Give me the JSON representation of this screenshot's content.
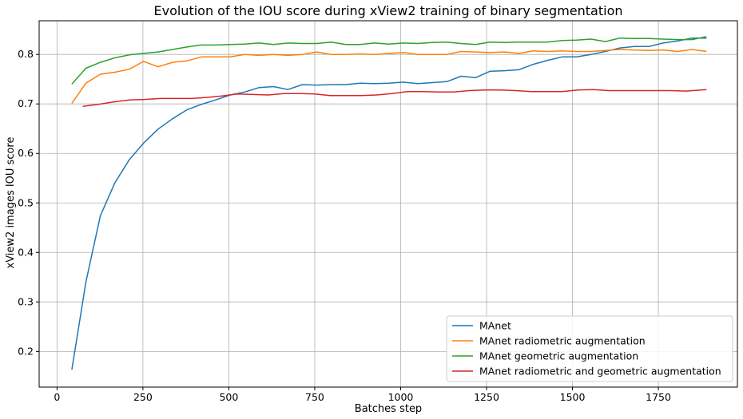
{
  "chart_data": {
    "type": "line",
    "title": "Evolution of the IOU score during xView2 training of binary segmentation",
    "xlabel": "Batches step",
    "ylabel": "xView2 images IOU score",
    "xlim": [
      -52,
      1980
    ],
    "ylim": [
      0.128,
      0.868
    ],
    "x_ticks": [
      0,
      250,
      500,
      750,
      1000,
      1250,
      1500,
      1750
    ],
    "y_ticks": [
      0.2,
      0.3,
      0.4,
      0.5,
      0.6,
      0.7,
      0.8
    ],
    "grid": true,
    "legend_position": "lower-right",
    "series": [
      {
        "name": "MAnet",
        "color": "#1f77b4",
        "x": [
          43,
          84,
          126,
          168,
          210,
          252,
          294,
          336,
          378,
          420,
          462,
          504,
          546,
          588,
          630,
          672,
          714,
          756,
          798,
          840,
          882,
          924,
          966,
          1008,
          1050,
          1092,
          1134,
          1176,
          1218,
          1260,
          1302,
          1344,
          1386,
          1428,
          1470,
          1512,
          1554,
          1596,
          1638,
          1680,
          1722,
          1764,
          1806,
          1848,
          1890
        ],
        "y": [
          0.163,
          0.34,
          0.474,
          0.54,
          0.587,
          0.621,
          0.649,
          0.67,
          0.688,
          0.699,
          0.708,
          0.718,
          0.724,
          0.733,
          0.735,
          0.729,
          0.739,
          0.738,
          0.739,
          0.739,
          0.742,
          0.741,
          0.742,
          0.744,
          0.741,
          0.743,
          0.745,
          0.756,
          0.753,
          0.766,
          0.767,
          0.769,
          0.78,
          0.788,
          0.795,
          0.795,
          0.8,
          0.806,
          0.813,
          0.816,
          0.816,
          0.823,
          0.827,
          0.833,
          0.833
        ]
      },
      {
        "name": "MAnet radiometric augmentation",
        "color": "#ff7f0e",
        "x": [
          43,
          84,
          126,
          168,
          210,
          252,
          294,
          336,
          378,
          420,
          462,
          504,
          546,
          588,
          630,
          672,
          714,
          756,
          798,
          840,
          882,
          924,
          966,
          1008,
          1050,
          1092,
          1134,
          1176,
          1218,
          1260,
          1302,
          1344,
          1386,
          1428,
          1470,
          1512,
          1554,
          1596,
          1638,
          1680,
          1722,
          1764,
          1806,
          1848,
          1890
        ],
        "y": [
          0.701,
          0.742,
          0.76,
          0.764,
          0.77,
          0.786,
          0.775,
          0.784,
          0.787,
          0.795,
          0.795,
          0.795,
          0.8,
          0.798,
          0.8,
          0.798,
          0.8,
          0.805,
          0.8,
          0.8,
          0.801,
          0.8,
          0.802,
          0.804,
          0.8,
          0.8,
          0.8,
          0.806,
          0.805,
          0.804,
          0.805,
          0.802,
          0.807,
          0.806,
          0.807,
          0.806,
          0.806,
          0.808,
          0.81,
          0.809,
          0.808,
          0.809,
          0.806,
          0.81,
          0.806
        ]
      },
      {
        "name": "MAnet geometric augmentation",
        "color": "#2ca02c",
        "x": [
          43,
          84,
          126,
          168,
          210,
          252,
          294,
          336,
          378,
          420,
          462,
          504,
          546,
          588,
          630,
          672,
          714,
          756,
          798,
          840,
          882,
          924,
          966,
          1008,
          1050,
          1092,
          1134,
          1176,
          1218,
          1260,
          1302,
          1344,
          1386,
          1428,
          1470,
          1512,
          1554,
          1596,
          1638,
          1680,
          1722,
          1764,
          1806,
          1848,
          1890
        ],
        "y": [
          0.74,
          0.772,
          0.784,
          0.793,
          0.799,
          0.802,
          0.805,
          0.81,
          0.815,
          0.819,
          0.819,
          0.82,
          0.821,
          0.823,
          0.82,
          0.823,
          0.822,
          0.822,
          0.825,
          0.82,
          0.82,
          0.823,
          0.821,
          0.823,
          0.822,
          0.824,
          0.825,
          0.822,
          0.82,
          0.825,
          0.824,
          0.825,
          0.825,
          0.825,
          0.828,
          0.829,
          0.831,
          0.826,
          0.833,
          0.832,
          0.832,
          0.831,
          0.83,
          0.83,
          0.836
        ]
      },
      {
        "name": "MAnet radiometric and geometric augmentation",
        "color": "#d62728",
        "x": [
          75,
          120,
          165,
          210,
          255,
          300,
          345,
          390,
          435,
          480,
          525,
          570,
          615,
          660,
          705,
          750,
          795,
          840,
          885,
          930,
          975,
          1020,
          1065,
          1110,
          1155,
          1200,
          1245,
          1290,
          1335,
          1380,
          1425,
          1470,
          1515,
          1560,
          1605,
          1650,
          1695,
          1740,
          1785,
          1830,
          1875,
          1890
        ],
        "y": [
          0.695,
          0.699,
          0.704,
          0.708,
          0.709,
          0.711,
          0.711,
          0.711,
          0.713,
          0.716,
          0.72,
          0.719,
          0.718,
          0.721,
          0.721,
          0.72,
          0.717,
          0.717,
          0.717,
          0.718,
          0.721,
          0.725,
          0.725,
          0.724,
          0.724,
          0.727,
          0.728,
          0.728,
          0.727,
          0.725,
          0.725,
          0.725,
          0.728,
          0.729,
          0.727,
          0.727,
          0.727,
          0.727,
          0.727,
          0.726,
          0.728,
          0.729
        ]
      }
    ]
  }
}
